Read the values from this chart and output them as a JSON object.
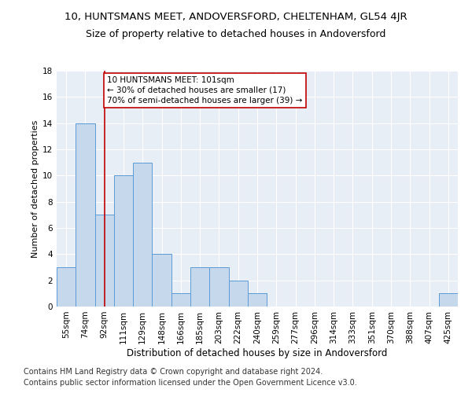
{
  "title1": "10, HUNTSMANS MEET, ANDOVERSFORD, CHELTENHAM, GL54 4JR",
  "title2": "Size of property relative to detached houses in Andoversford",
  "xlabel": "Distribution of detached houses by size in Andoversford",
  "ylabel": "Number of detached properties",
  "footnote1": "Contains HM Land Registry data © Crown copyright and database right 2024.",
  "footnote2": "Contains public sector information licensed under the Open Government Licence v3.0.",
  "categories": [
    "55sqm",
    "74sqm",
    "92sqm",
    "111sqm",
    "129sqm",
    "148sqm",
    "166sqm",
    "185sqm",
    "203sqm",
    "222sqm",
    "240sqm",
    "259sqm",
    "277sqm",
    "296sqm",
    "314sqm",
    "333sqm",
    "351sqm",
    "370sqm",
    "388sqm",
    "407sqm",
    "425sqm"
  ],
  "values": [
    3,
    14,
    7,
    10,
    11,
    4,
    1,
    3,
    3,
    2,
    1,
    0,
    0,
    0,
    0,
    0,
    0,
    0,
    0,
    0,
    1
  ],
  "bar_color": "#c6d9ec",
  "bar_edge_color": "#5b9bd5",
  "vline_x": 2,
  "vline_color": "#c00000",
  "annotation_text": "10 HUNTSMANS MEET: 101sqm\n← 30% of detached houses are smaller (17)\n70% of semi-detached houses are larger (39) →",
  "annotation_box_color": "white",
  "annotation_box_edge_color": "#c00000",
  "ylim": [
    0,
    18
  ],
  "yticks": [
    0,
    2,
    4,
    6,
    8,
    10,
    12,
    14,
    16,
    18
  ],
  "plot_background": "#e8eef6",
  "title1_fontsize": 9.5,
  "title2_fontsize": 9,
  "xlabel_fontsize": 8.5,
  "ylabel_fontsize": 8,
  "tick_fontsize": 7.5,
  "annotation_fontsize": 7.5,
  "footnote_fontsize": 7
}
